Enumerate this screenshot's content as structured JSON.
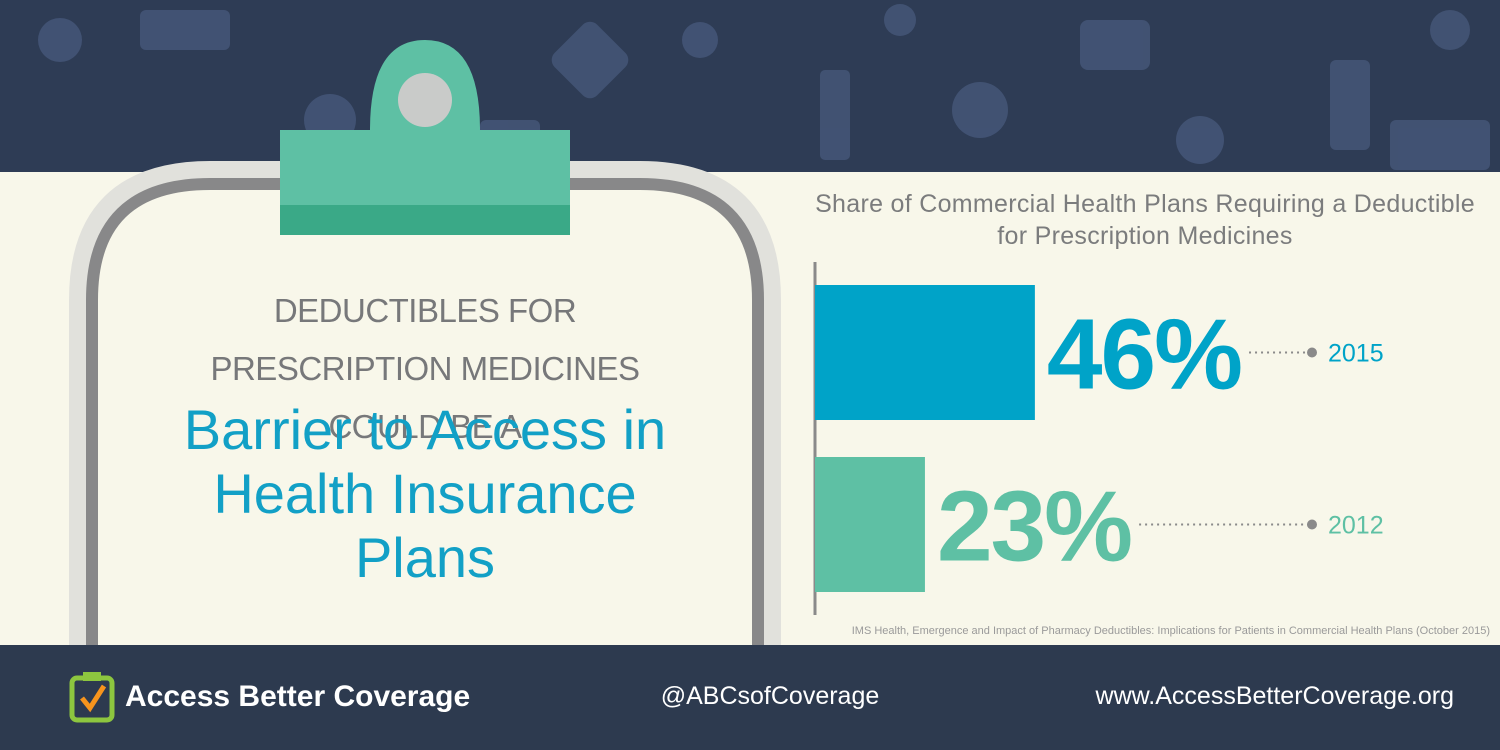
{
  "headline": {
    "lead": "DEDUCTIBLES FOR PRESCRIPTION MEDICINES COULD BE A",
    "emphasis": "Barrier to Access in Health Insurance Plans"
  },
  "chart_data": {
    "type": "bar",
    "orientation": "horizontal",
    "title": "Share of Commercial Health Plans Requiring a Deductible for Prescription Medicines",
    "categories": [
      "2015",
      "2012"
    ],
    "values": [
      46,
      23
    ],
    "value_labels": [
      "46%",
      "23%"
    ],
    "colors": [
      "#00a3c8",
      "#5ec0a4"
    ],
    "source": "IMS Health, Emergence and Impact of Pharmacy Deductibles: Implications for Patients in Commercial Health Plans (October 2015)"
  },
  "footer": {
    "brand": "Access Better Coverage",
    "handle": "@ABCsofCoverage",
    "url": "www.AccessBetterCoverage.org"
  }
}
